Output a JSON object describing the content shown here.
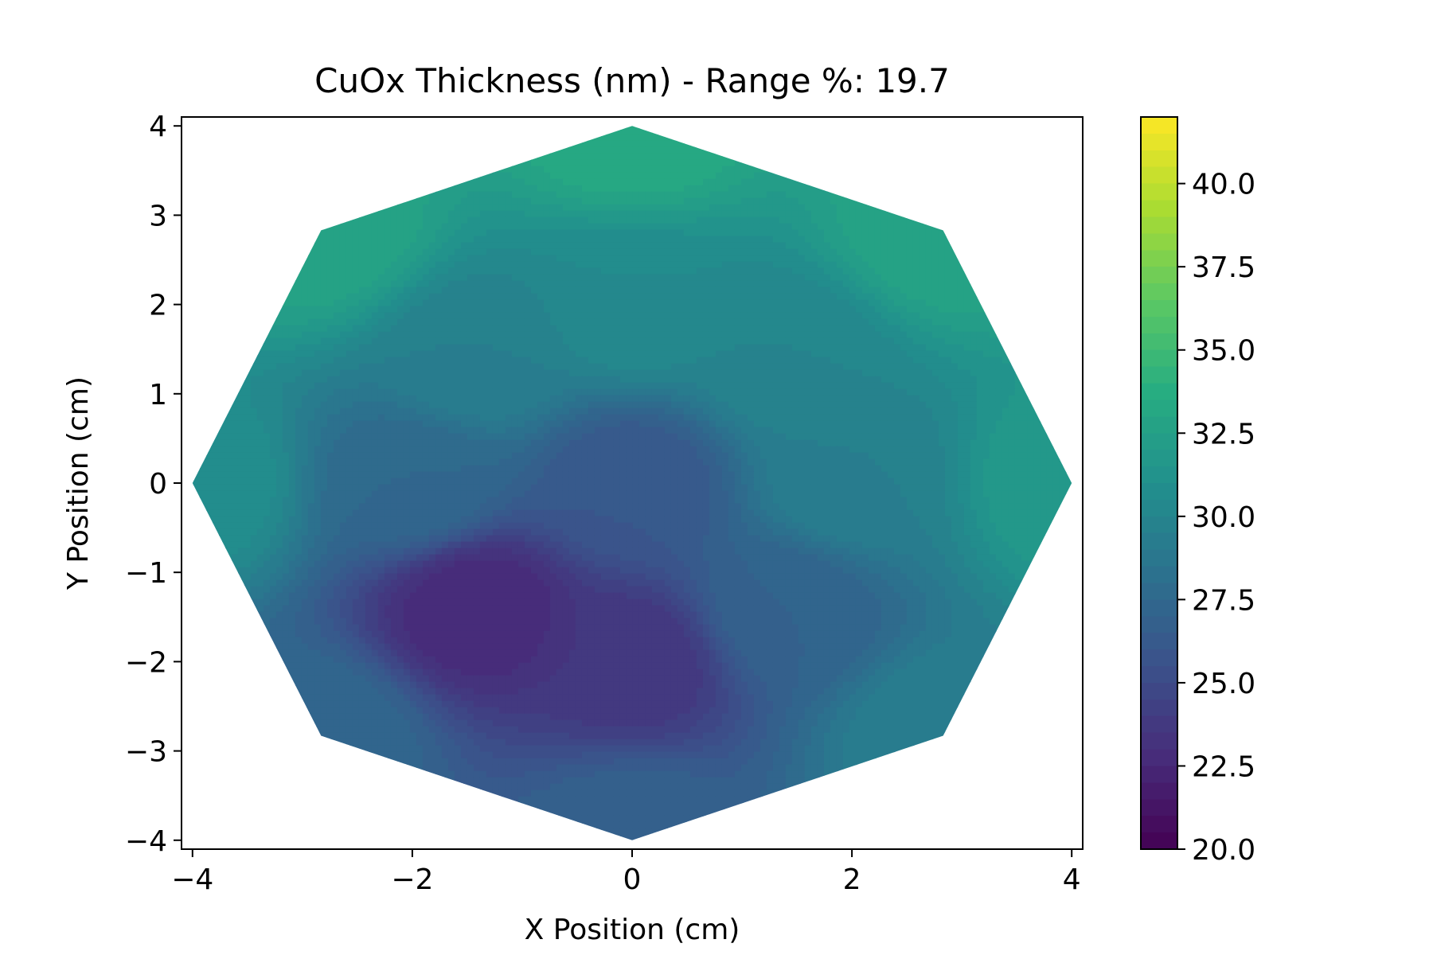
{
  "chart_data": {
    "type": "heatmap",
    "title": "CuOx Thickness (nm) - Range %: 19.7",
    "xlabel": "X Position (cm)",
    "ylabel": "Y Position (cm)",
    "xlim": [
      -4.1,
      4.1
    ],
    "ylim": [
      -4.1,
      4.1
    ],
    "x_ticks": [
      -4,
      -2,
      0,
      2,
      4
    ],
    "y_ticks": [
      -4,
      -3,
      -2,
      -1,
      0,
      1,
      2,
      3,
      4
    ],
    "x_tick_labels": [
      "−4",
      "−2",
      "0",
      "2",
      "4"
    ],
    "y_tick_labels": [
      "−4",
      "−3",
      "−2",
      "−1",
      "0",
      "1",
      "2",
      "3",
      "4"
    ],
    "grid": false,
    "colormap": "viridis",
    "colorbar": {
      "range": [
        20.0,
        42.0
      ],
      "ticks": [
        20.0,
        22.5,
        25.0,
        27.5,
        30.0,
        32.5,
        35.0,
        37.5,
        40.0
      ],
      "tick_labels": [
        "20.0",
        "22.5",
        "25.0",
        "27.5",
        "30.0",
        "32.5",
        "35.0",
        "37.5",
        "40.0"
      ]
    },
    "points": [
      {
        "x": 0,
        "y": 0,
        "value": 26.0
      },
      {
        "x": 0,
        "y": 4,
        "value": 33.5
      },
      {
        "x": 2.83,
        "y": 2.83,
        "value": 33.0
      },
      {
        "x": 4,
        "y": 0,
        "value": 32.0
      },
      {
        "x": 2.83,
        "y": -2.83,
        "value": 29.5
      },
      {
        "x": 0,
        "y": -4,
        "value": 27.0
      },
      {
        "x": -2.83,
        "y": -2.83,
        "value": 27.5
      },
      {
        "x": -4,
        "y": 0,
        "value": 31.0
      },
      {
        "x": -2.83,
        "y": 2.83,
        "value": 33.0
      },
      {
        "x": 0,
        "y": 2,
        "value": 30.5
      },
      {
        "x": 1.41,
        "y": 1.41,
        "value": 30.0
      },
      {
        "x": 2,
        "y": 0,
        "value": 29.5
      },
      {
        "x": 1.41,
        "y": -1.41,
        "value": 27.0
      },
      {
        "x": 0,
        "y": -2,
        "value": 23.5
      },
      {
        "x": -1.41,
        "y": -1.41,
        "value": 22.5
      },
      {
        "x": -2,
        "y": 0,
        "value": 27.5
      },
      {
        "x": -1.41,
        "y": 1.41,
        "value": 29.5
      }
    ]
  }
}
